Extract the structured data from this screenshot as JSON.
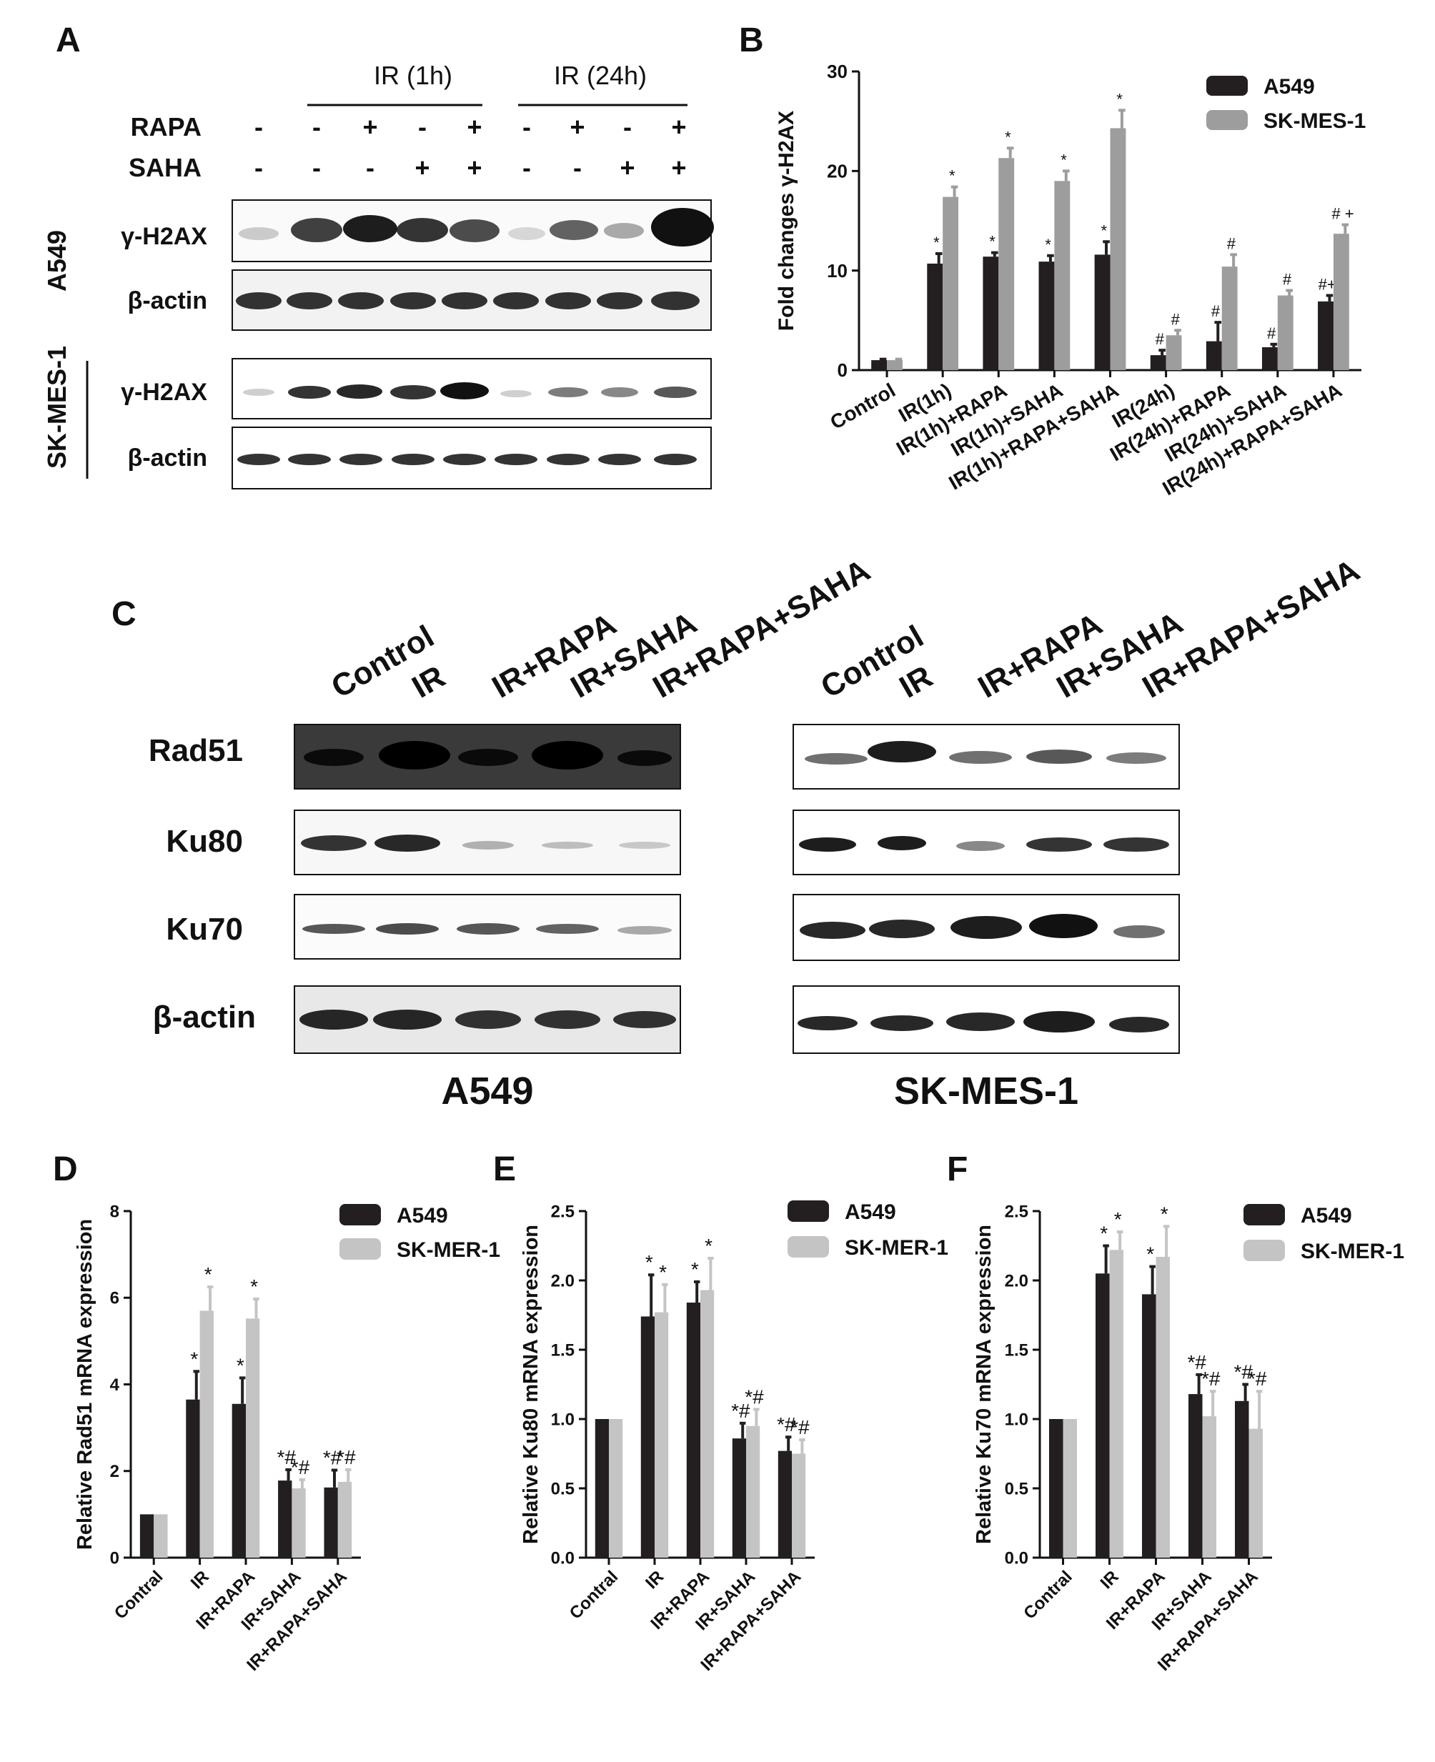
{
  "panels": {
    "A": {
      "letter": "A",
      "group_ir1": "IR (1h)",
      "group_ir24": "IR (24h)",
      "row_rapa": "RAPA",
      "row_saha": "SAHA",
      "rapa_signs": [
        "-",
        "-",
        "+",
        "-",
        "+",
        "-",
        "+",
        "-",
        "+"
      ],
      "saha_signs": [
        "-",
        "-",
        "-",
        "+",
        "+",
        "-",
        "-",
        "+",
        "+"
      ],
      "cell_a549": "A549",
      "cell_skmes": "SK-MES-1",
      "blot_gamma_label": "γ-H2AX",
      "blot_actin_label": "β-actin"
    },
    "B": {
      "letter": "B",
      "chart_data": {
        "type": "bar",
        "ylabel": "Fold changes γ-H2AX",
        "ylim": [
          0,
          30
        ],
        "yticks": [
          0,
          10,
          20,
          30
        ],
        "categories": [
          "Control",
          "IR(1h)",
          "IR(1h)+RAPA",
          "IR(1h)+SAHA",
          "IR(1h)+RAPA+SAHA",
          "IR(24h)",
          "IR(24h)+RAPA",
          "IR(24h)+SAHA",
          "IR(24h)+RAPA+SAHA"
        ],
        "legend_position": "top-right",
        "series": [
          {
            "name": "A549",
            "color": "#231f20",
            "values": [
              1.0,
              10.7,
              11.4,
              10.9,
              11.6,
              1.5,
              2.9,
              2.3,
              6.9
            ],
            "errors": [
              0.1,
              1.0,
              0.4,
              0.6,
              1.3,
              0.5,
              1.9,
              0.3,
              0.6
            ],
            "annotations": [
              "",
              "*",
              "*",
              "*",
              "*",
              "#",
              "#",
              "#",
              "#+"
            ]
          },
          {
            "name": "SK-MES-1",
            "color": "#9d9d9d",
            "values": [
              1.0,
              17.4,
              21.3,
              19.0,
              24.3,
              3.5,
              10.4,
              7.5,
              13.7
            ],
            "errors": [
              0.1,
              1.0,
              1.0,
              1.0,
              1.8,
              0.5,
              1.2,
              0.5,
              0.9
            ],
            "annotations": [
              "",
              "*",
              "*",
              "*",
              "*",
              "#",
              "#",
              "#",
              "# +"
            ]
          }
        ]
      }
    },
    "C": {
      "letter": "C",
      "lanes": [
        "Control",
        "IR",
        "IR+RAPA",
        "IR+SAHA",
        "IR+RAPA+SAHA"
      ],
      "proteins": [
        "Rad51",
        "Ku80",
        "Ku70",
        "β-actin"
      ],
      "caption_left": "A549",
      "caption_right": "SK-MES-1"
    },
    "D": {
      "letter": "D",
      "chart_data": {
        "type": "bar",
        "ylabel": "Relative Rad51 mRNA expression",
        "ylim": [
          0,
          8
        ],
        "yticks": [
          0,
          2,
          4,
          6,
          8
        ],
        "categories": [
          "Contral",
          "IR",
          "IR+RAPA",
          "IR+SAHA",
          "IR+RAPA+SAHA"
        ],
        "legend_position": "top-right",
        "series": [
          {
            "name": "A549",
            "color": "#231f20",
            "values": [
              1.0,
              3.65,
              3.55,
              1.78,
              1.62
            ],
            "errors": [
              0.0,
              0.65,
              0.6,
              0.25,
              0.4
            ],
            "annotations": [
              "",
              "*",
              "*",
              "*#",
              "*#"
            ]
          },
          {
            "name": "SK-MER-1",
            "color": "#c4c4c4",
            "values": [
              1.0,
              5.7,
              5.52,
              1.6,
              1.75
            ],
            "errors": [
              0.0,
              0.55,
              0.45,
              0.2,
              0.28
            ],
            "annotations": [
              "",
              "*",
              "*",
              "*#",
              "*#"
            ]
          }
        ]
      }
    },
    "E": {
      "letter": "E",
      "chart_data": {
        "type": "bar",
        "ylabel": "Relative Ku80 mRNA expression",
        "ylim": [
          0,
          2.5
        ],
        "yticks": [
          "0.0",
          "0.5",
          "1.0",
          "1.5",
          "2.0",
          "2.5"
        ],
        "categories": [
          "Contral",
          "IR",
          "IR+RAPA",
          "IR+SAHA",
          "IR+RAPA+SAHA"
        ],
        "legend_position": "top-right",
        "series": [
          {
            "name": "A549",
            "color": "#231f20",
            "values": [
              1.0,
              1.74,
              1.84,
              0.86,
              0.77
            ],
            "errors": [
              0.0,
              0.3,
              0.15,
              0.11,
              0.1
            ],
            "annotations": [
              "",
              "*",
              "*",
              "*#",
              "*#"
            ]
          },
          {
            "name": "SK-MER-1",
            "color": "#c4c4c4",
            "values": [
              1.0,
              1.77,
              1.93,
              0.95,
              0.75
            ],
            "errors": [
              0.0,
              0.2,
              0.23,
              0.12,
              0.1
            ],
            "annotations": [
              "",
              "*",
              "*",
              "*#",
              "*#"
            ]
          }
        ]
      }
    },
    "F": {
      "letter": "F",
      "chart_data": {
        "type": "bar",
        "ylabel": "Relative Ku70 mRNA expression",
        "ylim": [
          0,
          2.5
        ],
        "yticks": [
          "0.0",
          "0.5",
          "1.0",
          "1.5",
          "2.0",
          "2.5"
        ],
        "categories": [
          "Contral",
          "IR",
          "IR+RAPA",
          "IR+SAHA",
          "IR+RAPA+SAHA"
        ],
        "legend_position": "top-right",
        "series": [
          {
            "name": "A549",
            "color": "#231f20",
            "values": [
              1.0,
              2.05,
              1.9,
              1.18,
              1.13
            ],
            "errors": [
              0.0,
              0.2,
              0.2,
              0.14,
              0.12
            ],
            "annotations": [
              "",
              "*",
              "*",
              "*#",
              "*#"
            ]
          },
          {
            "name": "SK-MER-1",
            "color": "#c4c4c4",
            "values": [
              1.0,
              2.22,
              2.17,
              1.02,
              0.93
            ],
            "errors": [
              0.0,
              0.13,
              0.22,
              0.18,
              0.27
            ],
            "annotations": [
              "",
              "*",
              "*",
              "*#",
              "*#"
            ]
          }
        ]
      }
    }
  }
}
